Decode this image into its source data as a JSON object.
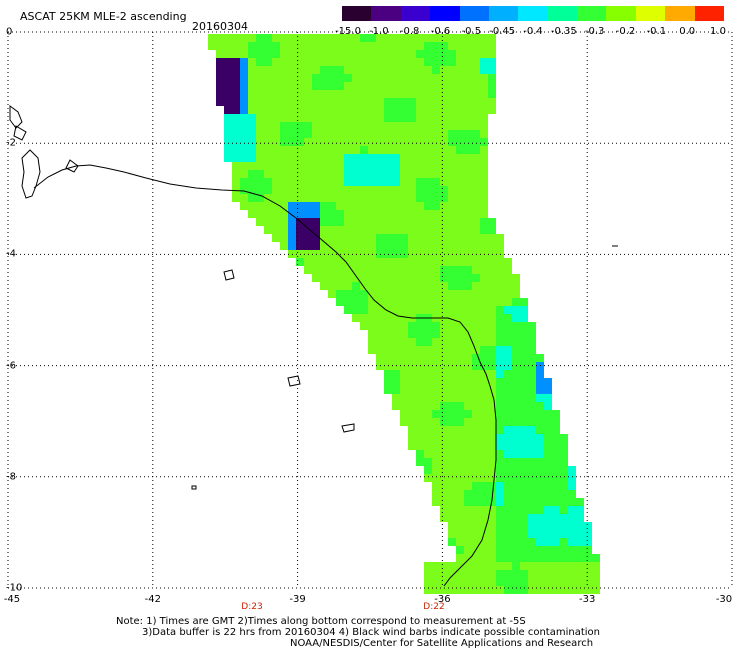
{
  "header": {
    "title": "ASCAT 25KM MLE-2 ascending",
    "date": "20160304"
  },
  "colorbar": {
    "labels": [
      "-15.0",
      "-1.0",
      "-0.8",
      "-0.6",
      "-0.5",
      "-0.45",
      "-0.4",
      "-0.35",
      "-0.3",
      "-0.2",
      "-0.1",
      "0.0",
      "1.0"
    ],
    "colors": [
      "#2a0030",
      "#4b0082",
      "#3a00d0",
      "#0000ff",
      "#0070ff",
      "#00b0ff",
      "#00e8ff",
      "#00ff99",
      "#33ff33",
      "#88ff00",
      "#ddff00",
      "#ffaa00",
      "#ff2200"
    ]
  },
  "axes": {
    "lat_labels": [
      "0",
      "-2",
      "-4",
      "-6",
      "-8",
      "-10"
    ],
    "lon_labels": [
      "-45",
      "-42",
      "-39",
      "-36",
      "-33",
      "-30"
    ],
    "lat_range": [
      -10,
      0
    ],
    "lon_range": [
      -45,
      -30
    ]
  },
  "time_labels": [
    "D:23",
    "D:22"
  ],
  "notes": {
    "line1": "Note: 1) Times are GMT 2)Times along bottom correspond to measurement at -5S",
    "line2": "3)Data buffer is 22 hrs from 20160304 4) Black wind barbs indicate possible contamination",
    "line3": "NOAA/NESDIS/Center for Satellite Applications and Research"
  },
  "palette": {
    "swath_main": "#7cfc1a",
    "swath_green": "#33ff33",
    "swath_cyan": "#00ffd0",
    "swath_blue": "#0090ff",
    "swath_dark": "#3b0066",
    "grid": "#000000",
    "time_label": "#cc2200"
  }
}
